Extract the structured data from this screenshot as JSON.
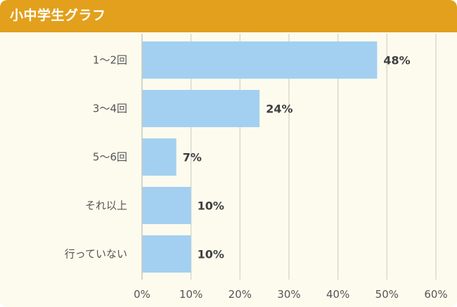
{
  "header": {
    "title": "小中学生グラフ"
  },
  "colors": {
    "header": "#e2a01c",
    "background": "#fdfbee",
    "bar": "#a3d0f1",
    "grid": "#d9d9cf"
  },
  "chart_data": {
    "type": "bar",
    "orientation": "horizontal",
    "title": "小中学生グラフ",
    "categories": [
      "1～2回",
      "3～4回",
      "5～6回",
      "それ以上",
      "行っていない"
    ],
    "values": [
      48,
      24,
      7,
      10,
      10
    ],
    "value_labels": [
      "48%",
      "24%",
      "7%",
      "10%",
      "10%"
    ],
    "xlim": [
      0,
      60
    ],
    "xticks": [
      0,
      10,
      20,
      30,
      40,
      50,
      60
    ],
    "xtick_labels": [
      "0%",
      "10%",
      "20%",
      "30%",
      "40%",
      "50%",
      "60%"
    ],
    "unit": "%",
    "grid": true,
    "legend": "none"
  }
}
